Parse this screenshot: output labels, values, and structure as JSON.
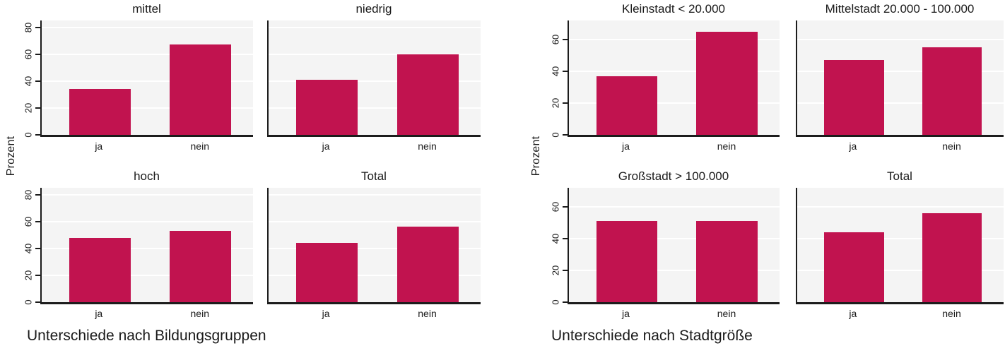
{
  "colors": {
    "bar": "#c1134f",
    "plot_background": "#f4f4f4",
    "gridline": "#ffffff",
    "axis": "#1c1c1c",
    "text": "#1a1a1a"
  },
  "chart_data": [
    {
      "type": "bar",
      "caption": "Unterschiede nach Bildungsgruppen",
      "ylabel": "Prozent",
      "categories": [
        "ja",
        "nein"
      ],
      "yticks": [
        0,
        20,
        40,
        60,
        80
      ],
      "ymax": 85,
      "grid": true,
      "layout": "2x2 panels, y tick labels only on left column, tick labels rotated 90deg",
      "panels": [
        {
          "title": "mittel",
          "values": [
            34,
            67
          ]
        },
        {
          "title": "niedrig",
          "values": [
            41,
            60
          ]
        },
        {
          "title": "hoch",
          "values": [
            48,
            53
          ]
        },
        {
          "title": "Total",
          "values": [
            44,
            56
          ]
        }
      ]
    },
    {
      "type": "bar",
      "caption": "Unterschiede nach Stadtgröße",
      "ylabel": "Prozent",
      "categories": [
        "ja",
        "nein"
      ],
      "yticks": [
        0,
        20,
        40,
        60
      ],
      "ymax": 72,
      "grid": true,
      "layout": "2x2 panels, y tick labels only on left column, tick labels rotated 90deg",
      "panels": [
        {
          "title": "Kleinstadt < 20.000",
          "values": [
            37,
            65
          ]
        },
        {
          "title": "Mittelstadt 20.000 - 100.000",
          "values": [
            47,
            55
          ]
        },
        {
          "title": "Großstadt > 100.000",
          "values": [
            51,
            51
          ]
        },
        {
          "title": "Total",
          "values": [
            44,
            56
          ]
        }
      ]
    }
  ]
}
